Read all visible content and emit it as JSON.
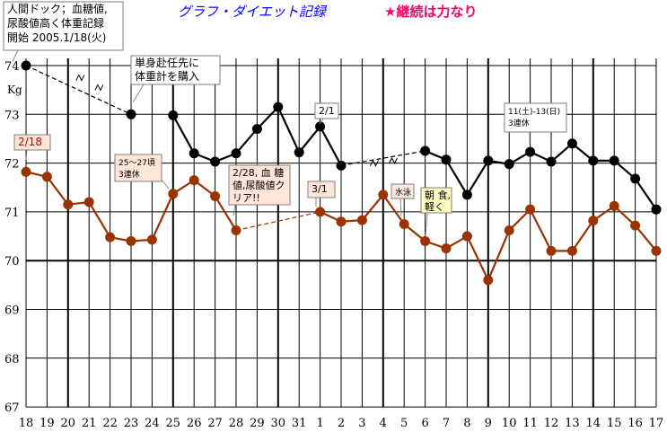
{
  "chart_data": {
    "type": "line",
    "title": "グラフ・ダイエット記録",
    "motto": "★継続は力なり",
    "ylabel": "Kg",
    "ylim": [
      67,
      74
    ],
    "yticks": [
      67,
      68,
      69,
      70,
      71,
      72,
      73,
      74
    ],
    "grid": true,
    "categories": [
      "18",
      "19",
      "20",
      "21",
      "22",
      "23",
      "24",
      "25",
      "26",
      "27",
      "28",
      "29",
      "30",
      "31",
      "1",
      "2",
      "3",
      "4",
      "5",
      "6",
      "7",
      "8",
      "9",
      "10",
      "11",
      "12",
      "13",
      "14",
      "15",
      "16",
      "17"
    ],
    "series": [
      {
        "color": "#000000",
        "values": [
          74.0,
          null,
          null,
          null,
          null,
          73.0,
          null,
          72.98,
          72.2,
          72.03,
          72.2,
          72.7,
          73.15,
          72.22,
          72.75,
          71.95,
          null,
          null,
          null,
          72.25,
          72.07,
          71.35,
          72.05,
          71.98,
          72.23,
          72.03,
          72.4,
          72.05,
          72.05,
          71.68,
          71.05
        ],
        "dashed_gaps": [
          [
            0,
            5
          ],
          [
            15,
            19
          ]
        ]
      },
      {
        "color": "#993300",
        "values": [
          71.82,
          71.72,
          71.15,
          71.2,
          70.48,
          70.4,
          70.43,
          71.37,
          71.65,
          71.32,
          70.62,
          null,
          null,
          null,
          71.0,
          70.8,
          70.83,
          71.35,
          70.75,
          70.4,
          70.25,
          70.5,
          69.6,
          70.62,
          71.05,
          70.2,
          70.2,
          70.82,
          71.12,
          70.72,
          70.2
        ],
        "dashed_gaps": [
          [
            10,
            14
          ]
        ]
      }
    ],
    "annotations": [
      {
        "id": "a1",
        "lines": [
          "人間ドック；血糖値,",
          "尿酸値高く体重記録",
          "開始 2005.1/18(火)"
        ]
      },
      {
        "id": "a2",
        "lines": [
          "単身赴任先に",
          "体重計を購入"
        ]
      },
      {
        "id": "a3",
        "lines": [
          "2/1"
        ]
      },
      {
        "id": "a4",
        "lines": [
          "11(土)-13(日)",
          "3連休"
        ]
      },
      {
        "id": "a5",
        "lines": [
          "2/18"
        ]
      },
      {
        "id": "a6",
        "lines": [
          "25〜27頃",
          "3連休"
        ]
      },
      {
        "id": "a7",
        "lines": [
          "2/28, 血 糖",
          "値,尿酸値ク",
          "リア!!"
        ]
      },
      {
        "id": "a8",
        "lines": [
          "3/1"
        ]
      },
      {
        "id": "a9",
        "lines": [
          "水泳"
        ]
      },
      {
        "id": "a10",
        "lines": [
          "朝 食,",
          "軽く"
        ]
      }
    ]
  }
}
